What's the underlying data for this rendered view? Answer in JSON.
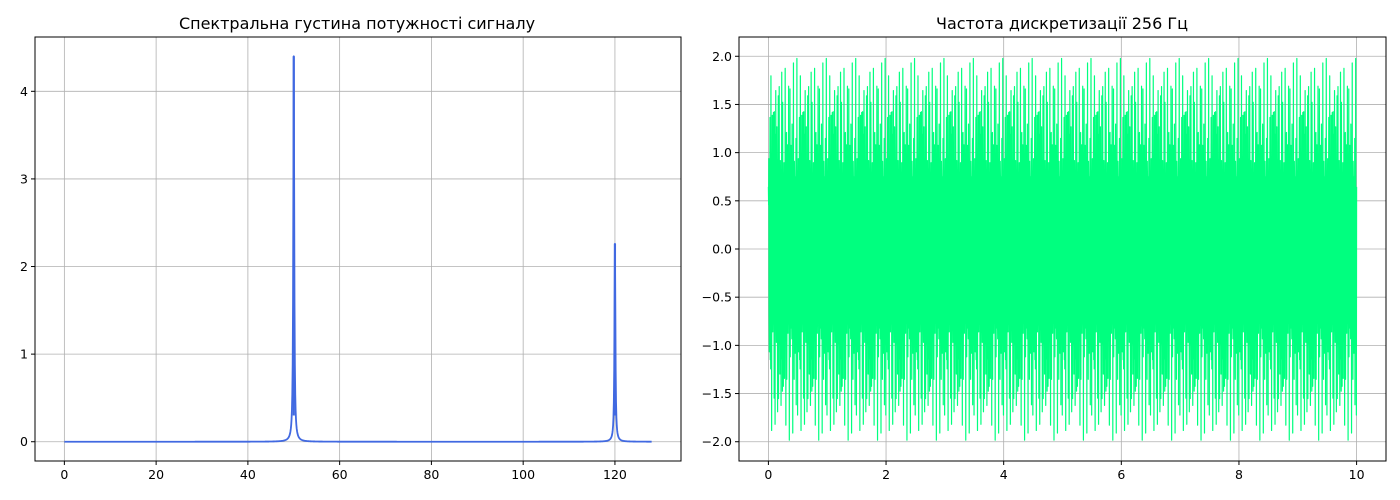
{
  "chart_data": [
    {
      "type": "line",
      "title": "Спектральна густина потужності сигналу",
      "xlabel": "",
      "ylabel": "",
      "xlim": [
        -6.4,
        134.4
      ],
      "ylim": [
        -0.22,
        4.62
      ],
      "xticks": [
        0,
        20,
        40,
        60,
        80,
        100,
        120
      ],
      "yticks": [
        0,
        1,
        2,
        3,
        4
      ],
      "grid": true,
      "color": "#4169e1",
      "x_range": [
        0,
        128
      ],
      "baseline": 0.0,
      "peaks": [
        {
          "x": 50,
          "y": 4.4
        },
        {
          "x": 120,
          "y": 2.26
        }
      ]
    },
    {
      "type": "line",
      "title": "Частота дискретизації 256 Гц",
      "xlabel": "",
      "ylabel": "",
      "xlim": [
        -0.5,
        10.5
      ],
      "ylim": [
        -2.2,
        2.2
      ],
      "xticks": [
        0,
        2,
        4,
        6,
        8,
        10
      ],
      "yticks": [
        -2.0,
        -1.5,
        -1.0,
        -0.5,
        0.0,
        0.5,
        1.0,
        1.5,
        2.0
      ],
      "grid": true,
      "color": "#00ff7f",
      "x_range": [
        0,
        10
      ],
      "sampling_rate_hz": 256,
      "components": [
        {
          "frequency_hz": 50,
          "amplitude": 1.0
        },
        {
          "frequency_hz": 120,
          "amplitude": 1.0
        }
      ],
      "amplitude_range": [
        -2.0,
        2.0
      ]
    }
  ]
}
